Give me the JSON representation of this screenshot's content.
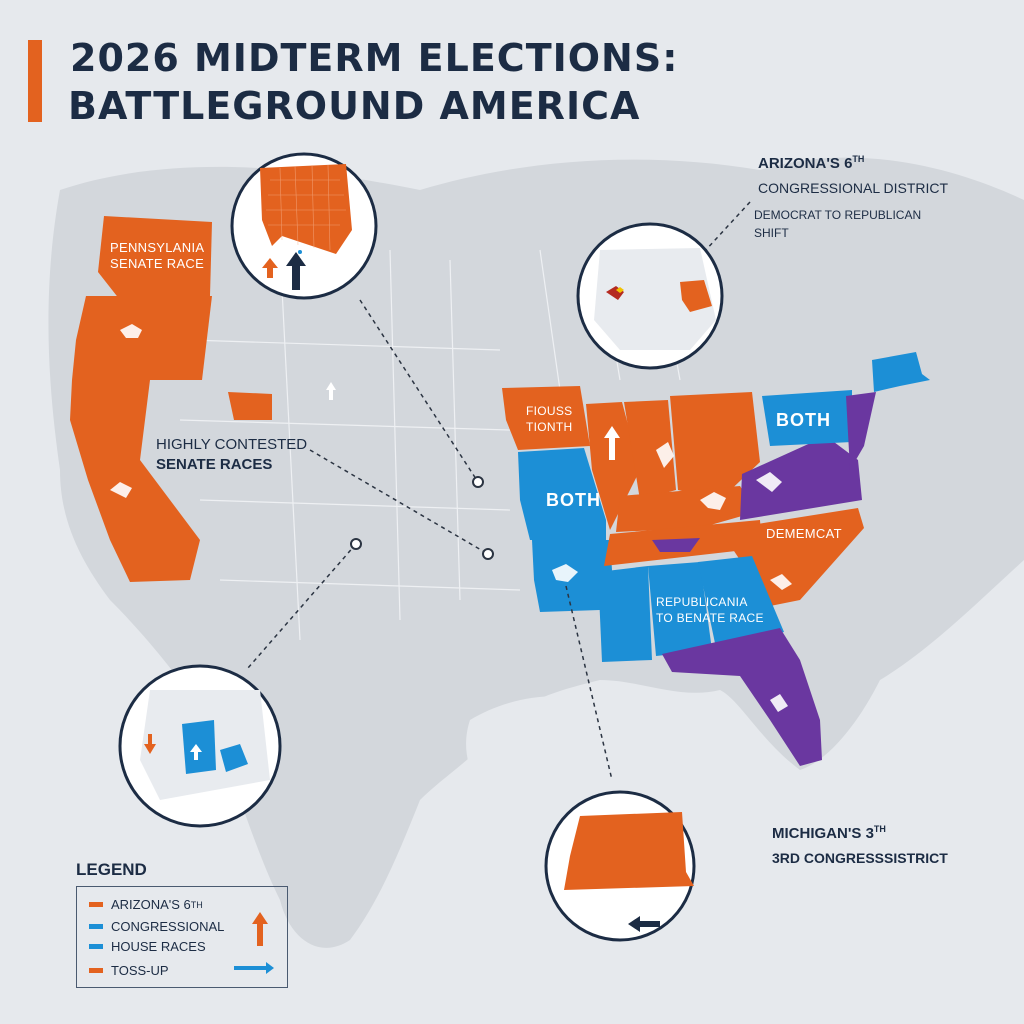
{
  "title": {
    "line1": "2026 MIDTERM ELECTIONS:",
    "line2": "BATTLEGROUND AMERICA"
  },
  "colors": {
    "background": "#e6e9ed",
    "land": "#d3d7dc",
    "ocean": "#e6e9ed",
    "orange": "#e3621f",
    "blue": "#1c8fd6",
    "purple": "#6a37a0",
    "navy": "#1c2c44"
  },
  "callouts": {
    "arizona": {
      "title": "ARIZONA'S 6",
      "title_sup": "TH",
      "subtitle": "CONGRESSIONAL DISTRICT",
      "note_line1": "DEMOCRAT TO REPUBLICAN",
      "note_line2": "SHIFT"
    },
    "michigan": {
      "line1": "MICHIGAN'S 3",
      "line1_sup": "TH",
      "line2": "3RD CONGRESSSISTRICT"
    },
    "contested": {
      "line1": "HIGHLY CONTESTED",
      "line2": "SENATE RACES"
    }
  },
  "map_labels": {
    "pennsylvania": [
      "PENNSYLANIA",
      "SENATE RACE"
    ],
    "fiouss": [
      "FIOUSS",
      "TIONTH"
    ],
    "both_midwest": "BOTH",
    "both_northeast": "BOTH",
    "demecat": "DEMEMCAT",
    "republicania": [
      "REPUBLICANIA",
      "TO BENATE RACE"
    ]
  },
  "legend": {
    "title": "LEGEND",
    "items": [
      {
        "label": "ARIZONA'S 6",
        "sup": "TH",
        "color": "#e3621f"
      },
      {
        "label": "CONGRESSIONAL",
        "color": "#1c8fd6"
      },
      {
        "label": "HOUSE RACES",
        "color": "#1c8fd6"
      },
      {
        "label": "TOSS-UP",
        "color": "#e3621f"
      }
    ],
    "icons": [
      "up-arrow-icon",
      "right-arrow-icon"
    ]
  }
}
